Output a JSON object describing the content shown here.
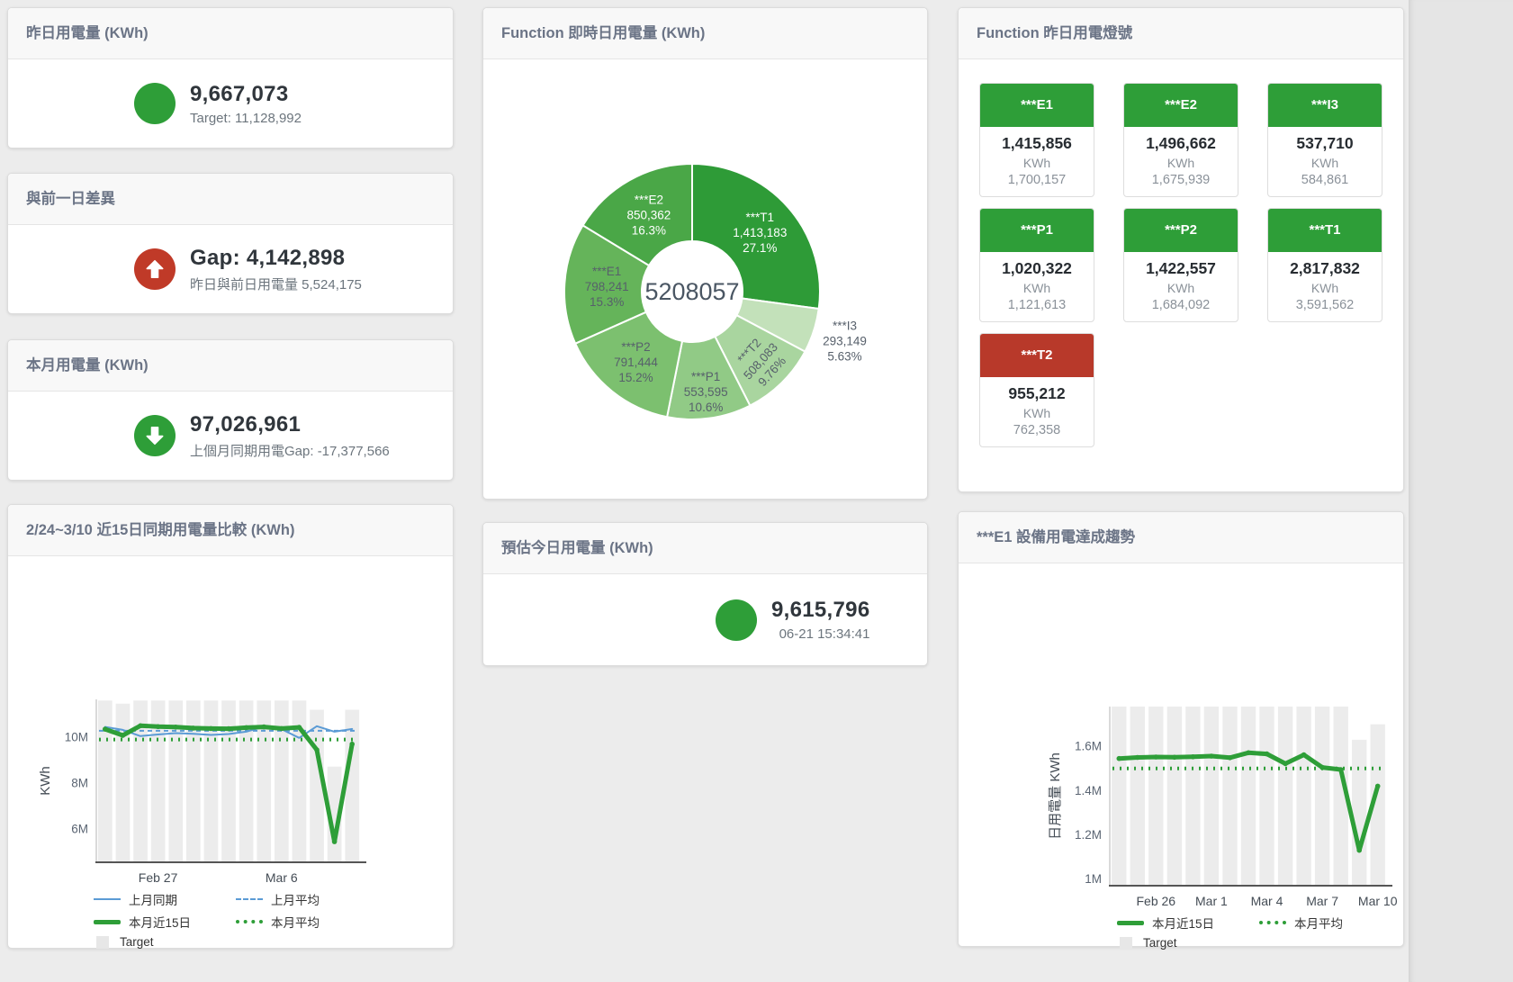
{
  "page": {
    "background": "#ececec"
  },
  "colors": {
    "green": "#2e9e38",
    "red": "#c03a28",
    "blue": "#5b9bd5",
    "target_bar": "#ececec"
  },
  "cards": {
    "yesterday": {
      "title": "昨日用電量 (KWh)",
      "value": "9,667,073",
      "sub": "Target: 11,128,992",
      "status": "green"
    },
    "gap_prev_day": {
      "title": "與前一日差異",
      "value": "Gap: 4,142,898",
      "sub": "昨日與前日用電量 5,524,175",
      "status": "red-up"
    },
    "month": {
      "title": "本月用電量 (KWh)",
      "value": "97,026,961",
      "sub": "上個月同期用電Gap: -17,377,566",
      "status": "green-down"
    },
    "estimate_today": {
      "title": "預估今日用電量 (KWh)",
      "value": "9,615,796",
      "sub": "06-21 15:34:41",
      "status": "green"
    },
    "realtime": {
      "title": "Function 即時日用電量 (KWh)"
    },
    "lights": {
      "title": "Function 昨日用電燈號",
      "tiles": [
        {
          "name": "***E1",
          "value": "1,415,856",
          "unit": "KWh",
          "target": "1,700,157",
          "status": "green"
        },
        {
          "name": "***E2",
          "value": "1,496,662",
          "unit": "KWh",
          "target": "1,675,939",
          "status": "green"
        },
        {
          "name": "***I3",
          "value": "537,710",
          "unit": "KWh",
          "target": "584,861",
          "status": "green"
        },
        {
          "name": "***P1",
          "value": "1,020,322",
          "unit": "KWh",
          "target": "1,121,613",
          "status": "green"
        },
        {
          "name": "***P2",
          "value": "1,422,557",
          "unit": "KWh",
          "target": "1,684,092",
          "status": "green"
        },
        {
          "name": "***T1",
          "value": "2,817,832",
          "unit": "KWh",
          "target": "3,591,562",
          "status": "green"
        },
        {
          "name": "***T2",
          "value": "955,212",
          "unit": "KWh",
          "target": "762,358",
          "status": "red"
        }
      ]
    },
    "compare": {
      "title": "2/24~3/10 近15日同期用電量比較 (KWh)",
      "legend": {
        "prev_period": "上月同期",
        "prev_avg": "上月平均",
        "cur15": "本月近15日",
        "cur_avg": "本月平均",
        "target": "Target"
      }
    },
    "trend": {
      "title": "***E1 設備用電達成趨勢",
      "legend": {
        "cur15": "本月近15日",
        "cur_avg": "本月平均",
        "target": "Target"
      }
    }
  },
  "chart_data": [
    {
      "id": "donut",
      "type": "pie",
      "title": "Function 即時日用電量 (KWh)",
      "center_label": "5208057",
      "total": 5208057,
      "slices": [
        {
          "name": "***T1",
          "value": 1413183,
          "value_fmt": "1,413,183",
          "pct": "27.1%",
          "color": "#2e9b37",
          "label_color": "#ffffff",
          "label_radius": 100
        },
        {
          "name": "***I3",
          "value": 293149,
          "value_fmt": "293,149",
          "pct": "5.63%",
          "color": "#c3e1ba",
          "label_radius": 178
        },
        {
          "name": "***T2",
          "value": 508083,
          "value_fmt": "508,083",
          "pct": "9.76%",
          "color": "#a9d59f",
          "label_radius": 108,
          "label_rotate": -48
        },
        {
          "name": "***P1",
          "value": 553595,
          "value_fmt": "553,595",
          "pct": "10.6%",
          "color": "#91ca86",
          "label_radius": 112
        },
        {
          "name": "***P2",
          "value": 791444,
          "value_fmt": "791,444",
          "pct": "15.2%",
          "color": "#7cc06f",
          "label_radius": 100
        },
        {
          "name": "***E1",
          "value": 798241,
          "value_fmt": "798,241",
          "pct": "15.3%",
          "color": "#65b45a",
          "label_radius": 95
        },
        {
          "name": "***E2",
          "value": 850362,
          "value_fmt": "850,362",
          "pct": "16.3%",
          "color": "#4aa747",
          "label_color": "#ffffff",
          "label_radius": 98
        }
      ]
    },
    {
      "id": "compare",
      "type": "line",
      "title": "2/24~3/10 近15日同期用電量比較 (KWh)",
      "x": [
        "2/24",
        "2/25",
        "2/26",
        "2/27",
        "2/28",
        "3/1",
        "3/2",
        "3/3",
        "3/4",
        "3/5",
        "3/6",
        "3/7",
        "3/8",
        "3/9",
        "3/10"
      ],
      "ylabel": "KWh",
      "unit": "M",
      "ylim": [
        4.55,
        11.65
      ],
      "yticks": [
        {
          "v": 6,
          "label": "6M"
        },
        {
          "v": 8,
          "label": "8M"
        },
        {
          "v": 10,
          "label": "10M"
        }
      ],
      "xticks": [
        {
          "i": 3,
          "label": "Feb 27"
        },
        {
          "i": 10,
          "label": "Mar 6"
        }
      ],
      "bars": {
        "name": "Target",
        "color": "#ececec",
        "values": [
          11.6,
          11.46,
          11.6,
          11.6,
          11.6,
          11.6,
          11.6,
          11.6,
          11.6,
          11.6,
          11.6,
          11.6,
          11.2,
          8.72,
          11.2
        ]
      },
      "series": [
        {
          "name": "上月同期",
          "color": "#5b9bd5",
          "width": 2,
          "values": [
            10.45,
            10.32,
            10.05,
            10.12,
            10.18,
            10.15,
            10.1,
            10.14,
            10.24,
            10.46,
            10.35,
            9.97,
            10.48,
            10.24,
            10.36
          ]
        },
        {
          "name": "上月平均",
          "color": "#5b9bd5",
          "width": 2,
          "dash": "5 4",
          "const": 10.28
        },
        {
          "name": "本月平均",
          "color": "#2e9e38",
          "width": 4,
          "dash": "2 6",
          "const": 9.9
        },
        {
          "name": "本月近15日",
          "color": "#2e9e38",
          "width": 5,
          "dots": true,
          "values": [
            10.35,
            10.08,
            10.5,
            10.46,
            10.44,
            10.4,
            10.38,
            10.37,
            10.42,
            10.45,
            10.38,
            10.43,
            9.45,
            5.45,
            9.7
          ]
        }
      ]
    },
    {
      "id": "trend",
      "type": "line",
      "title": "***E1 設備用電達成趨勢",
      "x": [
        "2/24",
        "2/25",
        "2/26",
        "2/27",
        "2/28",
        "3/1",
        "3/2",
        "3/3",
        "3/4",
        "3/5",
        "3/6",
        "3/7",
        "3/8",
        "3/9",
        "3/10"
      ],
      "ylabel": "日用電量 KWh",
      "unit": "M",
      "ylim": [
        0.97,
        1.78
      ],
      "yticks": [
        {
          "v": 1,
          "label": "1M"
        },
        {
          "v": 1.2,
          "label": "1.2M"
        },
        {
          "v": 1.4,
          "label": "1.4M"
        },
        {
          "v": 1.6,
          "label": "1.6M"
        }
      ],
      "xticks": [
        {
          "i": 2,
          "label": "Feb 26"
        },
        {
          "i": 5,
          "label": "Mar 1"
        },
        {
          "i": 8,
          "label": "Mar 4"
        },
        {
          "i": 11,
          "label": "Mar 7"
        },
        {
          "i": 14,
          "label": "Mar 10"
        }
      ],
      "bars": {
        "name": "Target",
        "color": "#ececec",
        "values": [
          1.78,
          1.78,
          1.78,
          1.78,
          1.78,
          1.78,
          1.78,
          1.78,
          1.78,
          1.78,
          1.78,
          1.78,
          1.78,
          1.63,
          1.7
        ]
      },
      "series": [
        {
          "name": "本月平均",
          "color": "#2e9e38",
          "width": 4,
          "dash": "2 6",
          "const": 1.5
        },
        {
          "name": "本月近15日",
          "color": "#2e9e38",
          "width": 5,
          "dots": true,
          "values": [
            1.545,
            1.55,
            1.552,
            1.551,
            1.553,
            1.556,
            1.549,
            1.571,
            1.566,
            1.522,
            1.562,
            1.505,
            1.495,
            1.13,
            1.42
          ]
        }
      ]
    }
  ]
}
